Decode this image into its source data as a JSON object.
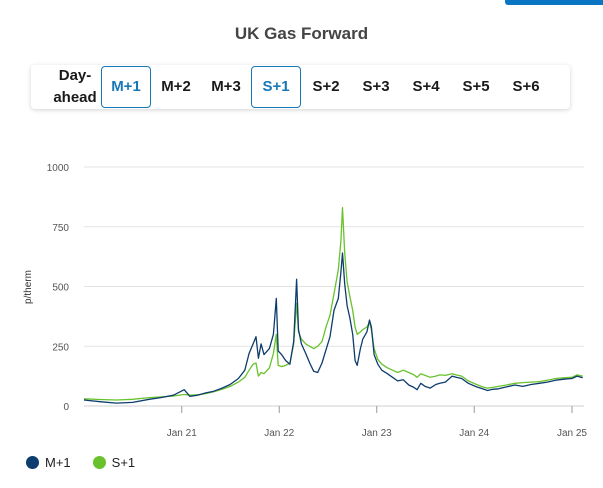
{
  "title": "UK Gas Forward",
  "tabs": [
    {
      "label": "Day-\nahead",
      "selected": false
    },
    {
      "label": "M+1",
      "selected": true
    },
    {
      "label": "M+2",
      "selected": false
    },
    {
      "label": "M+3",
      "selected": false
    },
    {
      "label": "S+1",
      "selected": true
    },
    {
      "label": "S+2",
      "selected": false
    },
    {
      "label": "S+3",
      "selected": false
    },
    {
      "label": "S+4",
      "selected": false
    },
    {
      "label": "S+5",
      "selected": false
    },
    {
      "label": "S+6",
      "selected": false
    }
  ],
  "colors": {
    "m1": "#0d3c6e",
    "s1": "#68c22b",
    "accent": "#1778b6",
    "grid": "#e3e3e3"
  },
  "legend": [
    {
      "name": "M+1",
      "color": "#0d3c6e"
    },
    {
      "name": "S+1",
      "color": "#68c22b"
    }
  ],
  "chart_data": {
    "type": "line",
    "title": "UK Gas Forward",
    "ylabel": "p/therm",
    "xlabel": "",
    "ylim": [
      0,
      1000
    ],
    "xlim": [
      "2020-01-01",
      "2025-02-15"
    ],
    "yticks": [
      0,
      250,
      500,
      750,
      1000
    ],
    "xticks": [
      {
        "label": "Jan 21",
        "date": "2021-01-01"
      },
      {
        "label": "Jan 22",
        "date": "2022-01-01"
      },
      {
        "label": "Jan 23",
        "date": "2023-01-01"
      },
      {
        "label": "Jan 24",
        "date": "2024-01-01"
      },
      {
        "label": "Jan 25",
        "date": "2025-01-01"
      }
    ],
    "grid": true,
    "legend_position": "bottom-left",
    "series": [
      {
        "name": "M+1",
        "points": [
          [
            "2020-01-01",
            25
          ],
          [
            "2020-03-01",
            18
          ],
          [
            "2020-05-01",
            12
          ],
          [
            "2020-07-01",
            15
          ],
          [
            "2020-09-01",
            28
          ],
          [
            "2020-10-15",
            35
          ],
          [
            "2020-12-01",
            45
          ],
          [
            "2021-01-10",
            68
          ],
          [
            "2021-02-01",
            40
          ],
          [
            "2021-03-01",
            45
          ],
          [
            "2021-04-01",
            55
          ],
          [
            "2021-05-01",
            62
          ],
          [
            "2021-06-01",
            75
          ],
          [
            "2021-07-01",
            90
          ],
          [
            "2021-08-01",
            115
          ],
          [
            "2021-08-25",
            150
          ],
          [
            "2021-09-10",
            220
          ],
          [
            "2021-09-25",
            260
          ],
          [
            "2021-10-06",
            290
          ],
          [
            "2021-10-15",
            200
          ],
          [
            "2021-10-25",
            260
          ],
          [
            "2021-11-05",
            215
          ],
          [
            "2021-11-25",
            240
          ],
          [
            "2021-12-10",
            300
          ],
          [
            "2021-12-21",
            450
          ],
          [
            "2021-12-28",
            230
          ],
          [
            "2022-01-10",
            215
          ],
          [
            "2022-01-25",
            190
          ],
          [
            "2022-02-10",
            175
          ],
          [
            "2022-02-24",
            270
          ],
          [
            "2022-03-07",
            530
          ],
          [
            "2022-03-14",
            320
          ],
          [
            "2022-03-25",
            260
          ],
          [
            "2022-04-10",
            220
          ],
          [
            "2022-04-25",
            180
          ],
          [
            "2022-05-10",
            145
          ],
          [
            "2022-05-25",
            140
          ],
          [
            "2022-06-10",
            180
          ],
          [
            "2022-06-25",
            235
          ],
          [
            "2022-07-10",
            290
          ],
          [
            "2022-07-25",
            400
          ],
          [
            "2022-08-10",
            450
          ],
          [
            "2022-08-20",
            560
          ],
          [
            "2022-08-26",
            640
          ],
          [
            "2022-09-03",
            510
          ],
          [
            "2022-09-12",
            420
          ],
          [
            "2022-09-22",
            370
          ],
          [
            "2022-10-03",
            300
          ],
          [
            "2022-10-12",
            190
          ],
          [
            "2022-10-20",
            170
          ],
          [
            "2022-11-01",
            240
          ],
          [
            "2022-11-10",
            280
          ],
          [
            "2022-11-25",
            310
          ],
          [
            "2022-12-05",
            360
          ],
          [
            "2022-12-12",
            330
          ],
          [
            "2022-12-22",
            215
          ],
          [
            "2023-01-05",
            175
          ],
          [
            "2023-01-20",
            150
          ],
          [
            "2023-02-10",
            135
          ],
          [
            "2023-03-01",
            120
          ],
          [
            "2023-03-20",
            105
          ],
          [
            "2023-04-10",
            110
          ],
          [
            "2023-05-01",
            88
          ],
          [
            "2023-05-20",
            78
          ],
          [
            "2023-06-01",
            68
          ],
          [
            "2023-06-15",
            95
          ],
          [
            "2023-07-01",
            82
          ],
          [
            "2023-07-20",
            75
          ],
          [
            "2023-08-10",
            90
          ],
          [
            "2023-08-25",
            95
          ],
          [
            "2023-09-15",
            100
          ],
          [
            "2023-10-10",
            125
          ],
          [
            "2023-10-25",
            120
          ],
          [
            "2023-11-15",
            115
          ],
          [
            "2023-12-10",
            95
          ],
          [
            "2024-01-10",
            80
          ],
          [
            "2024-02-01",
            72
          ],
          [
            "2024-02-20",
            65
          ],
          [
            "2024-03-10",
            70
          ],
          [
            "2024-04-01",
            72
          ],
          [
            "2024-05-01",
            80
          ],
          [
            "2024-06-01",
            88
          ],
          [
            "2024-07-01",
            82
          ],
          [
            "2024-08-01",
            90
          ],
          [
            "2024-09-01",
            95
          ],
          [
            "2024-10-01",
            100
          ],
          [
            "2024-11-01",
            108
          ],
          [
            "2024-12-01",
            112
          ],
          [
            "2025-01-01",
            115
          ],
          [
            "2025-01-20",
            125
          ],
          [
            "2025-02-10",
            118
          ]
        ]
      },
      {
        "name": "S+1",
        "points": [
          [
            "2020-01-01",
            30
          ],
          [
            "2020-03-01",
            27
          ],
          [
            "2020-05-01",
            25
          ],
          [
            "2020-07-01",
            28
          ],
          [
            "2020-09-01",
            35
          ],
          [
            "2020-10-15",
            38
          ],
          [
            "2020-12-01",
            42
          ],
          [
            "2021-01-10",
            48
          ],
          [
            "2021-02-01",
            45
          ],
          [
            "2021-03-01",
            47
          ],
          [
            "2021-04-01",
            52
          ],
          [
            "2021-05-01",
            60
          ],
          [
            "2021-06-01",
            70
          ],
          [
            "2021-07-01",
            82
          ],
          [
            "2021-08-01",
            100
          ],
          [
            "2021-08-25",
            120
          ],
          [
            "2021-09-10",
            150
          ],
          [
            "2021-09-25",
            175
          ],
          [
            "2021-10-06",
            180
          ],
          [
            "2021-10-15",
            125
          ],
          [
            "2021-10-25",
            140
          ],
          [
            "2021-11-05",
            135
          ],
          [
            "2021-11-25",
            160
          ],
          [
            "2021-12-10",
            220
          ],
          [
            "2021-12-21",
            300
          ],
          [
            "2021-12-28",
            170
          ],
          [
            "2022-01-10",
            165
          ],
          [
            "2022-01-25",
            170
          ],
          [
            "2022-02-10",
            180
          ],
          [
            "2022-02-24",
            260
          ],
          [
            "2022-03-07",
            430
          ],
          [
            "2022-03-14",
            310
          ],
          [
            "2022-03-25",
            280
          ],
          [
            "2022-04-10",
            260
          ],
          [
            "2022-04-25",
            250
          ],
          [
            "2022-05-10",
            240
          ],
          [
            "2022-05-25",
            250
          ],
          [
            "2022-06-10",
            270
          ],
          [
            "2022-06-25",
            330
          ],
          [
            "2022-07-10",
            380
          ],
          [
            "2022-07-25",
            470
          ],
          [
            "2022-08-10",
            570
          ],
          [
            "2022-08-20",
            690
          ],
          [
            "2022-08-26",
            830
          ],
          [
            "2022-09-03",
            640
          ],
          [
            "2022-09-12",
            520
          ],
          [
            "2022-09-22",
            460
          ],
          [
            "2022-10-03",
            400
          ],
          [
            "2022-10-12",
            330
          ],
          [
            "2022-10-20",
            300
          ],
          [
            "2022-11-01",
            310
          ],
          [
            "2022-11-10",
            320
          ],
          [
            "2022-11-25",
            330
          ],
          [
            "2022-12-05",
            350
          ],
          [
            "2022-12-12",
            320
          ],
          [
            "2022-12-22",
            240
          ],
          [
            "2023-01-05",
            195
          ],
          [
            "2023-01-20",
            175
          ],
          [
            "2023-02-10",
            160
          ],
          [
            "2023-03-01",
            150
          ],
          [
            "2023-03-20",
            140
          ],
          [
            "2023-04-10",
            150
          ],
          [
            "2023-05-01",
            140
          ],
          [
            "2023-05-20",
            130
          ],
          [
            "2023-06-01",
            120
          ],
          [
            "2023-06-15",
            135
          ],
          [
            "2023-07-01",
            128
          ],
          [
            "2023-07-20",
            120
          ],
          [
            "2023-08-10",
            125
          ],
          [
            "2023-08-25",
            130
          ],
          [
            "2023-09-15",
            128
          ],
          [
            "2023-10-10",
            135
          ],
          [
            "2023-10-25",
            130
          ],
          [
            "2023-11-15",
            125
          ],
          [
            "2023-12-10",
            105
          ],
          [
            "2024-01-10",
            90
          ],
          [
            "2024-02-01",
            80
          ],
          [
            "2024-02-20",
            75
          ],
          [
            "2024-03-10",
            78
          ],
          [
            "2024-04-01",
            82
          ],
          [
            "2024-05-01",
            88
          ],
          [
            "2024-06-01",
            95
          ],
          [
            "2024-07-01",
            98
          ],
          [
            "2024-08-01",
            100
          ],
          [
            "2024-09-01",
            102
          ],
          [
            "2024-10-01",
            108
          ],
          [
            "2024-11-01",
            115
          ],
          [
            "2024-12-01",
            118
          ],
          [
            "2025-01-01",
            120
          ],
          [
            "2025-01-20",
            130
          ],
          [
            "2025-02-10",
            125
          ]
        ]
      }
    ]
  }
}
